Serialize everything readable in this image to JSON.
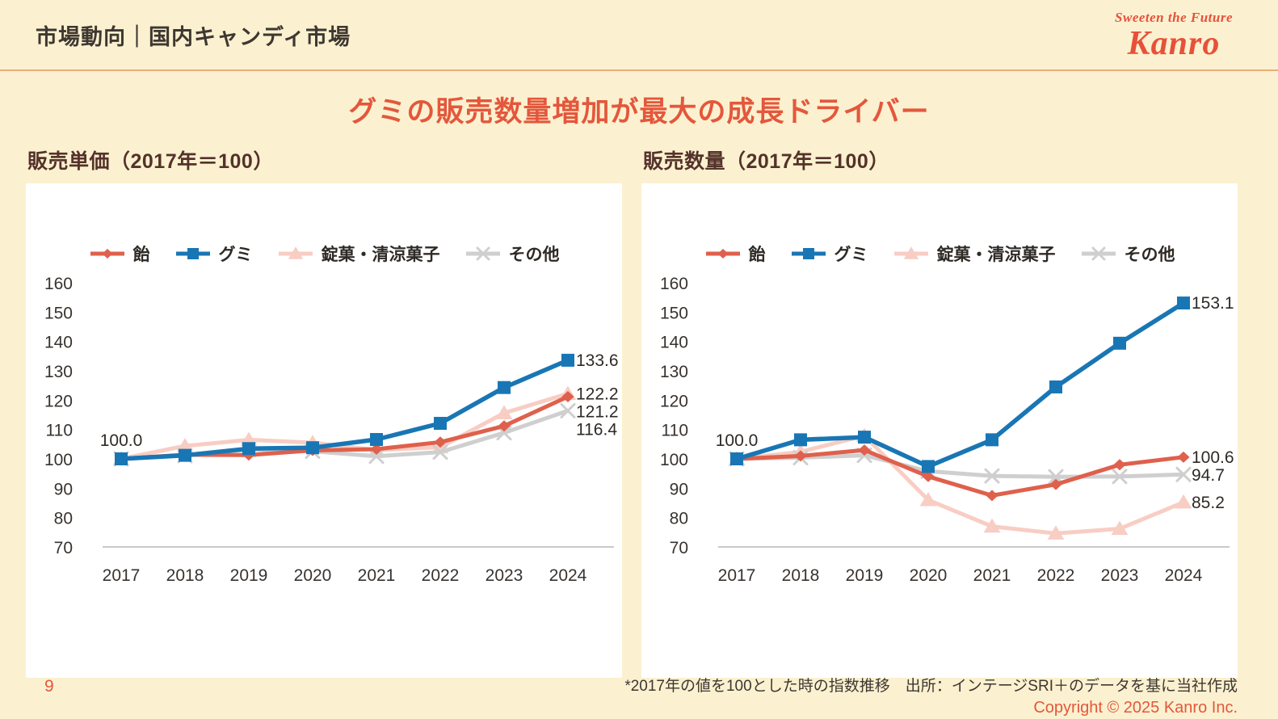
{
  "page": {
    "background_color": "#FBF1D0",
    "page_number": "9"
  },
  "header": {
    "title": "市場動向｜国内キャンディ市場",
    "divider_color": "#EBAC7C",
    "logo": {
      "tagline": "Sweeten the Future",
      "brand": "Kanro",
      "color": "#E8503A"
    }
  },
  "main": {
    "headline": "グミの販売数量増加が最大の成長ドライバー",
    "headline_color": "#E4573C"
  },
  "footer": {
    "note": "*2017年の値を100とした時の指数推移　出所：インテージSRI＋のデータを基に当社作成",
    "copyright": "Copyright © 2025  Kanro Inc."
  },
  "chart_data": [
    {
      "type": "line",
      "title": "販売単価（2017年＝100）",
      "categories": [
        "2017",
        "2018",
        "2019",
        "2020",
        "2021",
        "2022",
        "2023",
        "2024"
      ],
      "ylim": [
        70,
        160
      ],
      "yticks": [
        160,
        150,
        140,
        130,
        120,
        110,
        100,
        90,
        80,
        70
      ],
      "grid": false,
      "legend_position": "top",
      "start_label": "100.0",
      "draw_order": [
        2,
        3,
        0,
        1
      ],
      "series": [
        {
          "name": "飴",
          "color": "#DF604C",
          "marker": "diamond",
          "values": [
            100,
            101.4,
            101.3,
            102.9,
            103.3,
            105.7,
            111.2,
            121.2
          ],
          "end_label": "121.2"
        },
        {
          "name": "グミ",
          "color": "#1976B4",
          "marker": "square",
          "values": [
            100,
            101.2,
            103.5,
            103.8,
            106.6,
            112.1,
            124.3,
            133.6
          ],
          "end_label": "133.6"
        },
        {
          "name": "錠菓・清涼菓子",
          "color": "#F8CDC3",
          "marker": "triangle",
          "values": [
            100,
            104.4,
            106.5,
            105.5,
            103.0,
            104.0,
            115.6,
            122.2
          ],
          "end_label": "122.2"
        },
        {
          "name": "その他",
          "color": "#CFCFCF",
          "marker": "x",
          "values": [
            100,
            101.1,
            103.2,
            102.6,
            100.9,
            102.3,
            108.9,
            116.4
          ],
          "end_label": "116.4"
        }
      ]
    },
    {
      "type": "line",
      "title": "販売数量（2017年＝100）",
      "categories": [
        "2017",
        "2018",
        "2019",
        "2020",
        "2021",
        "2022",
        "2023",
        "2024"
      ],
      "ylim": [
        70,
        160
      ],
      "yticks": [
        160,
        150,
        140,
        130,
        120,
        110,
        100,
        90,
        80,
        70
      ],
      "grid": false,
      "legend_position": "top",
      "start_label": "100.0",
      "draw_order": [
        2,
        3,
        0,
        1
      ],
      "series": [
        {
          "name": "飴",
          "color": "#DF604C",
          "marker": "diamond",
          "values": [
            100,
            101.0,
            103.0,
            94.0,
            87.5,
            91.3,
            98.0,
            100.6
          ],
          "end_label": "100.6"
        },
        {
          "name": "グミ",
          "color": "#1976B4",
          "marker": "square",
          "values": [
            100,
            106.5,
            107.4,
            97.4,
            106.5,
            124.5,
            139.4,
            153.1
          ],
          "end_label": "153.1"
        },
        {
          "name": "錠菓・清涼菓子",
          "color": "#F8CDC3",
          "marker": "triangle",
          "values": [
            100,
            102.4,
            107.9,
            86.0,
            77.0,
            74.6,
            76.2,
            85.2
          ],
          "end_label": "85.2"
        },
        {
          "name": "その他",
          "color": "#CFCFCF",
          "marker": "x",
          "values": [
            100,
            100.4,
            101.2,
            95.8,
            94.2,
            93.9,
            94.0,
            94.7
          ],
          "end_label": "94.7"
        }
      ]
    }
  ]
}
